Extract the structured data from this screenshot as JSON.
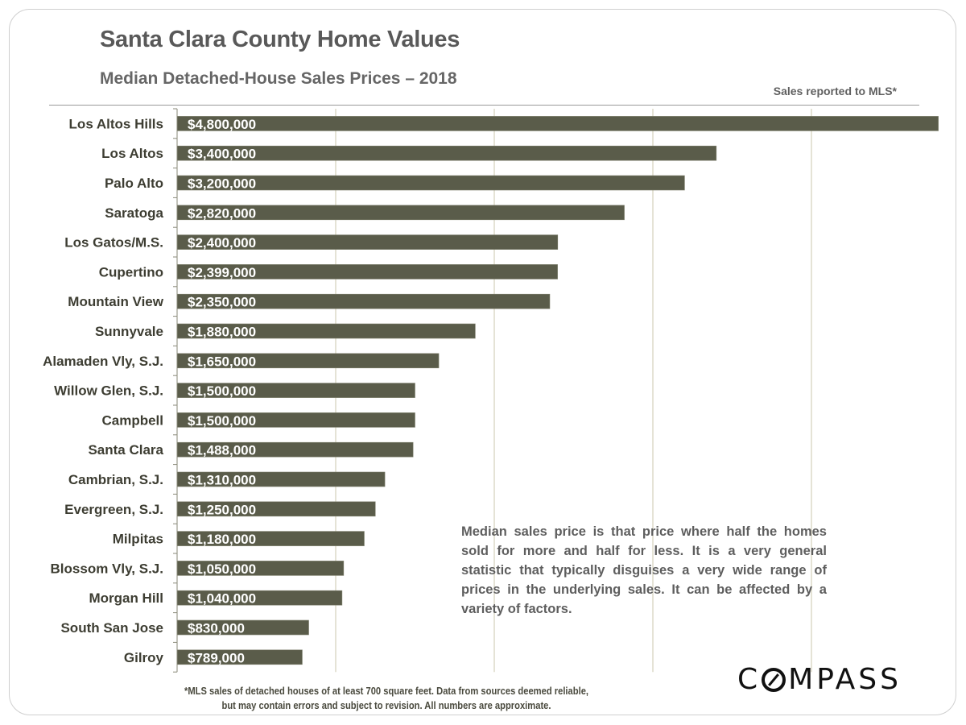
{
  "header": {
    "title": "Santa Clara County Home Values",
    "subtitle": "Median Detached-House Sales Prices – 2018",
    "source_note": "Sales reported to MLS*"
  },
  "note": "Median sales price is that price where half the homes sold for more and half for less. It is a very general statistic that typically disguises a very wide range of prices in the underlying sales. It can be affected by a variety of factors.",
  "footnote": {
    "line1": "*MLS sales of detached houses of at least 700 square feet. Data from sources deemed reliable,",
    "line2": "but may contain errors and subject to revision. All numbers are approximate."
  },
  "logo": {
    "before": "C",
    "after": "MPASS",
    "full": "COMPASS"
  },
  "colors": {
    "bar": "#5a5c4a",
    "grid": "#cbc7ae",
    "label": "#3d3d32",
    "bar_text": "#ffffff"
  },
  "chart_data": {
    "type": "bar",
    "orientation": "horizontal",
    "title": "Santa Clara County Home Values",
    "subtitle": "Median Detached-House Sales Prices – 2018",
    "xlabel": "",
    "ylabel": "",
    "xlim": [
      0,
      4800000
    ],
    "grid": true,
    "grid_step": 1000000,
    "categories": [
      "Los Altos Hills",
      "Los Altos",
      "Palo Alto",
      "Saratoga",
      "Los Gatos/M.S.",
      "Cupertino",
      "Mountain View",
      "Sunnyvale",
      "Alamaden Vly, S.J.",
      "Willow Glen, S.J.",
      "Campbell",
      "Santa Clara",
      "Cambrian, S.J.",
      "Evergreen, S.J.",
      "Milpitas",
      "Blossom Vly, S.J.",
      "Morgan Hill",
      "South San Jose",
      "Gilroy"
    ],
    "values": [
      4800000,
      3400000,
      3200000,
      2820000,
      2400000,
      2399000,
      2350000,
      1880000,
      1650000,
      1500000,
      1500000,
      1488000,
      1310000,
      1250000,
      1180000,
      1050000,
      1040000,
      830000,
      789000
    ],
    "data_labels": [
      "$4,800,000",
      "$3,400,000",
      "$3,200,000",
      "$2,820,000",
      "$2,400,000",
      "$2,399,000",
      "$2,350,000",
      "$1,880,000",
      "$1,650,000",
      "$1,500,000",
      "$1,500,000",
      "$1,488,000",
      "$1,310,000",
      "$1,250,000",
      "$1,180,000",
      "$1,050,000",
      "$1,040,000",
      "$830,000",
      "$789,000"
    ]
  }
}
